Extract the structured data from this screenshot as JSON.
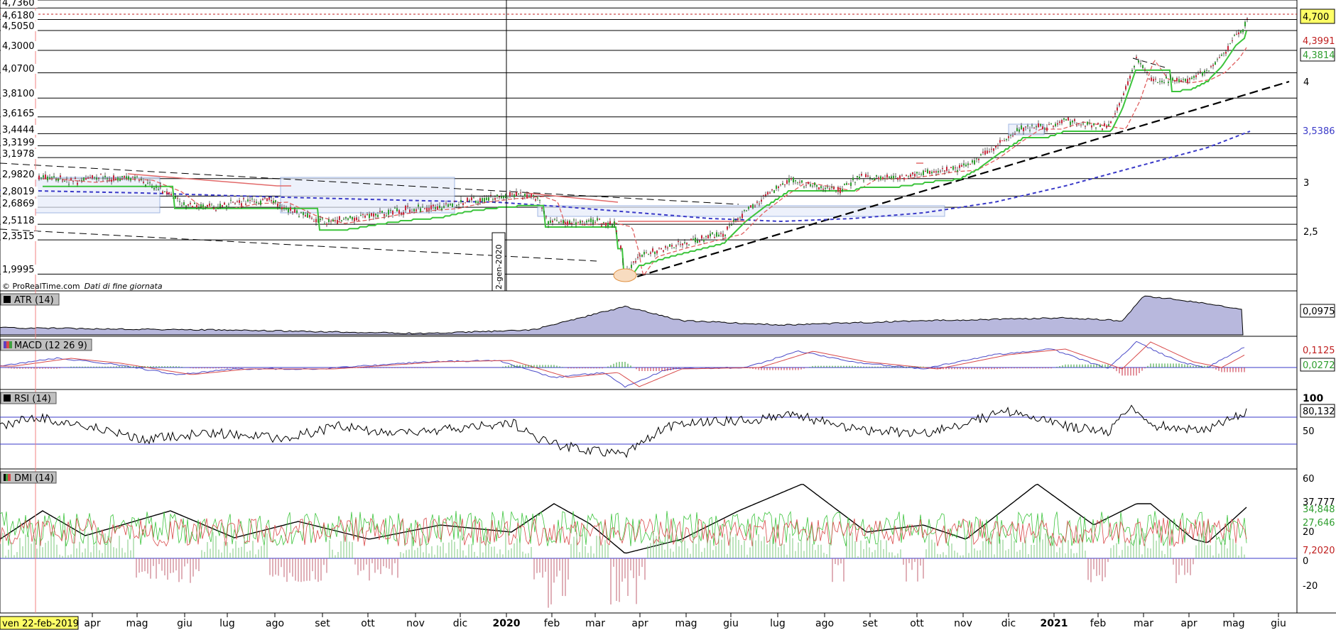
{
  "credit": "© ProRealTime.com",
  "credit_note": "Dati di fine giornata",
  "cursor_date": "ven 22-feb-2019",
  "vertical_marker_label": "2-gen-2020",
  "colors": {
    "price_up": "#2e9e2e",
    "price_down": "#c8283c",
    "ema_red": "#e06060",
    "ema_blue": "#3a3ac8",
    "stop_green": "#3cc43c",
    "stop_red": "#e26a6a",
    "trend": "#000000",
    "atr_fill": "#b8b8dd",
    "macd": "#4a4ac8",
    "signal": "#d84a4a",
    "current_price_bg": "#ffff66"
  },
  "chart_data": [
    {
      "type": "line",
      "title": "",
      "x_ticks": [
        "apr",
        "mag",
        "giu",
        "lug",
        "ago",
        "set",
        "ott",
        "nov",
        "dic",
        "2020",
        "feb",
        "mar",
        "apr",
        "mag",
        "giu",
        "lug",
        "ago",
        "set",
        "ott",
        "nov",
        "dic",
        "2021",
        "feb",
        "mar",
        "apr",
        "mag",
        "giu"
      ],
      "level_labels": [
        "4,7360",
        "4,6180",
        "4,5050",
        "4,3000",
        "4,0700",
        "3,8100",
        "3,6165",
        "3,4444",
        "3,3199",
        "3,1978",
        "2,9820",
        "2,8019",
        "2,6869",
        "2,5118",
        "2,3515",
        "1,9995"
      ],
      "right_ticks": [
        "4",
        "3",
        "2,5"
      ],
      "last_values": {
        "price": "4,700",
        "red_line": "4,3991",
        "green_line": "4,3814",
        "blue_ma": "3,5386"
      },
      "series": [
        {
          "name": "",
          "x": [
            "2019-02",
            "2019-05",
            "2019-07",
            "2019-09",
            "2019-11",
            "2020-01",
            "2020-02",
            "2020-03",
            "2020-05",
            "2020-07",
            "2020-09",
            "2020-11",
            "2021-01",
            "2021-02",
            "2021-03",
            "2021-04",
            "2021-05"
          ],
          "values": [
            2.95,
            2.95,
            2.72,
            2.6,
            2.72,
            2.9,
            2.6,
            2.05,
            2.4,
            2.95,
            2.95,
            3.05,
            3.55,
            3.55,
            4.2,
            4.05,
            4.7
          ]
        }
      ],
      "ylim": [
        1.9,
        4.76
      ]
    },
    {
      "type": "area",
      "title": "ATR (14)",
      "last_value": "0,0975"
    },
    {
      "type": "line",
      "title": "MACD (12 26 9)",
      "values_shown": [
        "0,1125",
        "0,0272"
      ]
    },
    {
      "type": "line",
      "title": "RSI (14)",
      "ticks": [
        "100",
        "50"
      ],
      "last_value": "80,132"
    },
    {
      "type": "line",
      "title": "DMI (14)",
      "ticks": [
        "60",
        "20",
        "0",
        "-20"
      ],
      "values_shown": [
        "37,777",
        "34,848",
        "27,646",
        "7,2020"
      ]
    }
  ]
}
